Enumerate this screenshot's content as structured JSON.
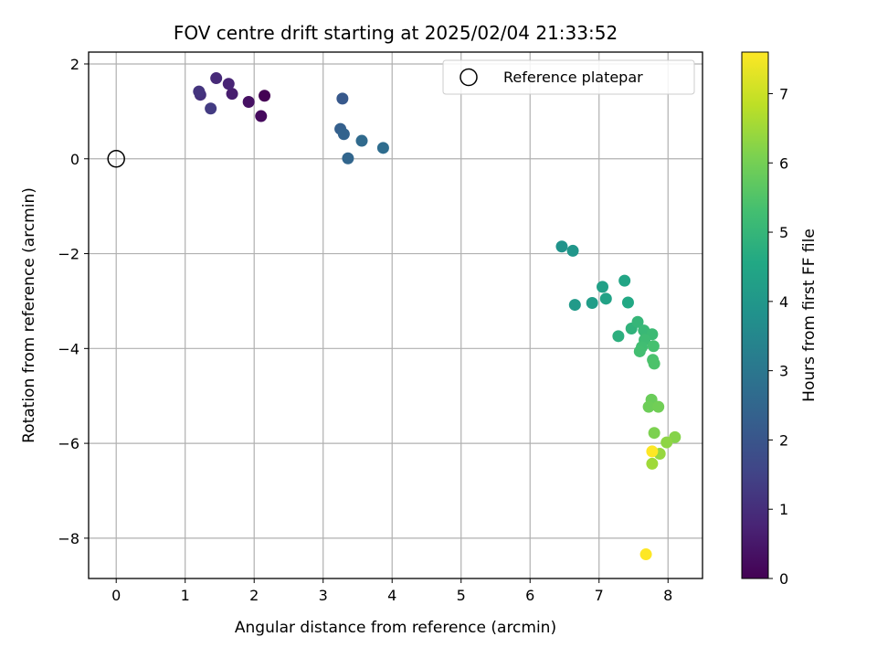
{
  "chart_data": {
    "type": "scatter",
    "title": "FOV centre drift starting at 2025/02/04 21:33:52",
    "xlabel": "Angular distance from reference (arcmin)",
    "ylabel": "Rotation from reference (arcmin)",
    "xlim": [
      -0.4,
      8.5
    ],
    "ylim": [
      -8.85,
      2.25
    ],
    "x_ticks": [
      0,
      1,
      2,
      3,
      4,
      5,
      6,
      7,
      8
    ],
    "y_ticks": [
      2,
      0,
      -2,
      -4,
      -6,
      -8
    ],
    "y_tick_labels": [
      "2",
      "0",
      "−2",
      "−4",
      "−6",
      "−8"
    ],
    "grid": true,
    "legend_position": "upper-right",
    "reference": {
      "name": "Reference platepar",
      "x": 0,
      "y": 0
    },
    "colorbar": {
      "label": "Hours from first FF file",
      "range": [
        0,
        7.6
      ],
      "ticks": [
        0,
        1,
        2,
        3,
        4,
        5,
        6,
        7
      ],
      "colormap": "viridis"
    },
    "points": [
      {
        "x": 2.15,
        "y": 1.33,
        "c": 0.0
      },
      {
        "x": 2.1,
        "y": 0.9,
        "c": 0.2
      },
      {
        "x": 1.92,
        "y": 1.2,
        "c": 0.35
      },
      {
        "x": 1.68,
        "y": 1.37,
        "c": 0.6
      },
      {
        "x": 1.63,
        "y": 1.58,
        "c": 0.75
      },
      {
        "x": 1.45,
        "y": 1.7,
        "c": 0.9
      },
      {
        "x": 1.22,
        "y": 1.35,
        "c": 1.05
      },
      {
        "x": 1.2,
        "y": 1.42,
        "c": 1.15
      },
      {
        "x": 1.37,
        "y": 1.06,
        "c": 1.3
      },
      {
        "x": 3.28,
        "y": 1.27,
        "c": 2.1
      },
      {
        "x": 3.25,
        "y": 0.63,
        "c": 2.3
      },
      {
        "x": 3.3,
        "y": 0.52,
        "c": 2.4
      },
      {
        "x": 3.36,
        "y": 0.01,
        "c": 2.5
      },
      {
        "x": 3.56,
        "y": 0.38,
        "c": 2.6
      },
      {
        "x": 3.87,
        "y": 0.23,
        "c": 2.7
      },
      {
        "x": 6.46,
        "y": -1.85,
        "c": 3.85
      },
      {
        "x": 6.62,
        "y": -1.94,
        "c": 3.95
      },
      {
        "x": 6.65,
        "y": -3.08,
        "c": 4.1
      },
      {
        "x": 6.9,
        "y": -3.04,
        "c": 4.2
      },
      {
        "x": 7.05,
        "y": -2.7,
        "c": 4.3
      },
      {
        "x": 7.1,
        "y": -2.95,
        "c": 4.35
      },
      {
        "x": 7.37,
        "y": -2.57,
        "c": 4.45
      },
      {
        "x": 7.42,
        "y": -3.03,
        "c": 4.55
      },
      {
        "x": 7.28,
        "y": -3.74,
        "c": 4.8
      },
      {
        "x": 7.47,
        "y": -3.58,
        "c": 4.9
      },
      {
        "x": 7.56,
        "y": -3.44,
        "c": 5.0
      },
      {
        "x": 7.65,
        "y": -3.62,
        "c": 5.1
      },
      {
        "x": 7.77,
        "y": -3.7,
        "c": 5.15
      },
      {
        "x": 7.66,
        "y": -3.82,
        "c": 5.2
      },
      {
        "x": 7.62,
        "y": -3.97,
        "c": 5.25
      },
      {
        "x": 7.59,
        "y": -4.06,
        "c": 5.3
      },
      {
        "x": 7.79,
        "y": -3.95,
        "c": 5.35
      },
      {
        "x": 7.78,
        "y": -4.24,
        "c": 5.4
      },
      {
        "x": 7.8,
        "y": -4.32,
        "c": 5.45
      },
      {
        "x": 7.76,
        "y": -5.08,
        "c": 5.85
      },
      {
        "x": 7.72,
        "y": -5.23,
        "c": 5.9
      },
      {
        "x": 7.86,
        "y": -5.23,
        "c": 5.95
      },
      {
        "x": 7.8,
        "y": -5.78,
        "c": 6.1
      },
      {
        "x": 8.1,
        "y": -5.87,
        "c": 6.2
      },
      {
        "x": 7.98,
        "y": -5.98,
        "c": 6.3
      },
      {
        "x": 7.88,
        "y": -6.22,
        "c": 6.4
      },
      {
        "x": 7.77,
        "y": -6.43,
        "c": 6.5
      },
      {
        "x": 7.77,
        "y": -6.17,
        "c": 7.6
      },
      {
        "x": 7.68,
        "y": -8.34,
        "c": 7.6
      }
    ]
  }
}
